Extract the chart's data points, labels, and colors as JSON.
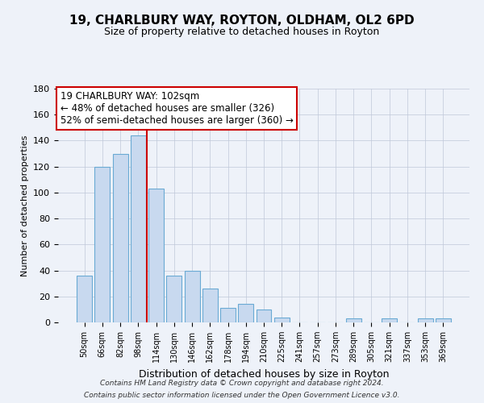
{
  "title": "19, CHARLBURY WAY, ROYTON, OLDHAM, OL2 6PD",
  "subtitle": "Size of property relative to detached houses in Royton",
  "xlabel": "Distribution of detached houses by size in Royton",
  "ylabel": "Number of detached properties",
  "bar_labels": [
    "50sqm",
    "66sqm",
    "82sqm",
    "98sqm",
    "114sqm",
    "130sqm",
    "146sqm",
    "162sqm",
    "178sqm",
    "194sqm",
    "210sqm",
    "225sqm",
    "241sqm",
    "257sqm",
    "273sqm",
    "289sqm",
    "305sqm",
    "321sqm",
    "337sqm",
    "353sqm",
    "369sqm"
  ],
  "bar_values": [
    36,
    120,
    130,
    144,
    103,
    36,
    40,
    26,
    11,
    14,
    10,
    4,
    0,
    0,
    0,
    3,
    0,
    3,
    0,
    3,
    3
  ],
  "bar_color": "#c8d9ef",
  "bar_edge_color": "#6aaad4",
  "vline_x_idx": 3,
  "vline_color": "#cc0000",
  "annotation_title": "19 CHARLBURY WAY: 102sqm",
  "annotation_line1": "← 48% of detached houses are smaller (326)",
  "annotation_line2": "52% of semi-detached houses are larger (360) →",
  "annotation_box_color": "#ffffff",
  "annotation_box_edge": "#cc0000",
  "ylim": [
    0,
    180
  ],
  "yticks": [
    0,
    20,
    40,
    60,
    80,
    100,
    120,
    140,
    160,
    180
  ],
  "footer_line1": "Contains HM Land Registry data © Crown copyright and database right 2024.",
  "footer_line2": "Contains public sector information licensed under the Open Government Licence v3.0.",
  "bg_color": "#eef2f9",
  "plot_bg_color": "#eef2f9"
}
